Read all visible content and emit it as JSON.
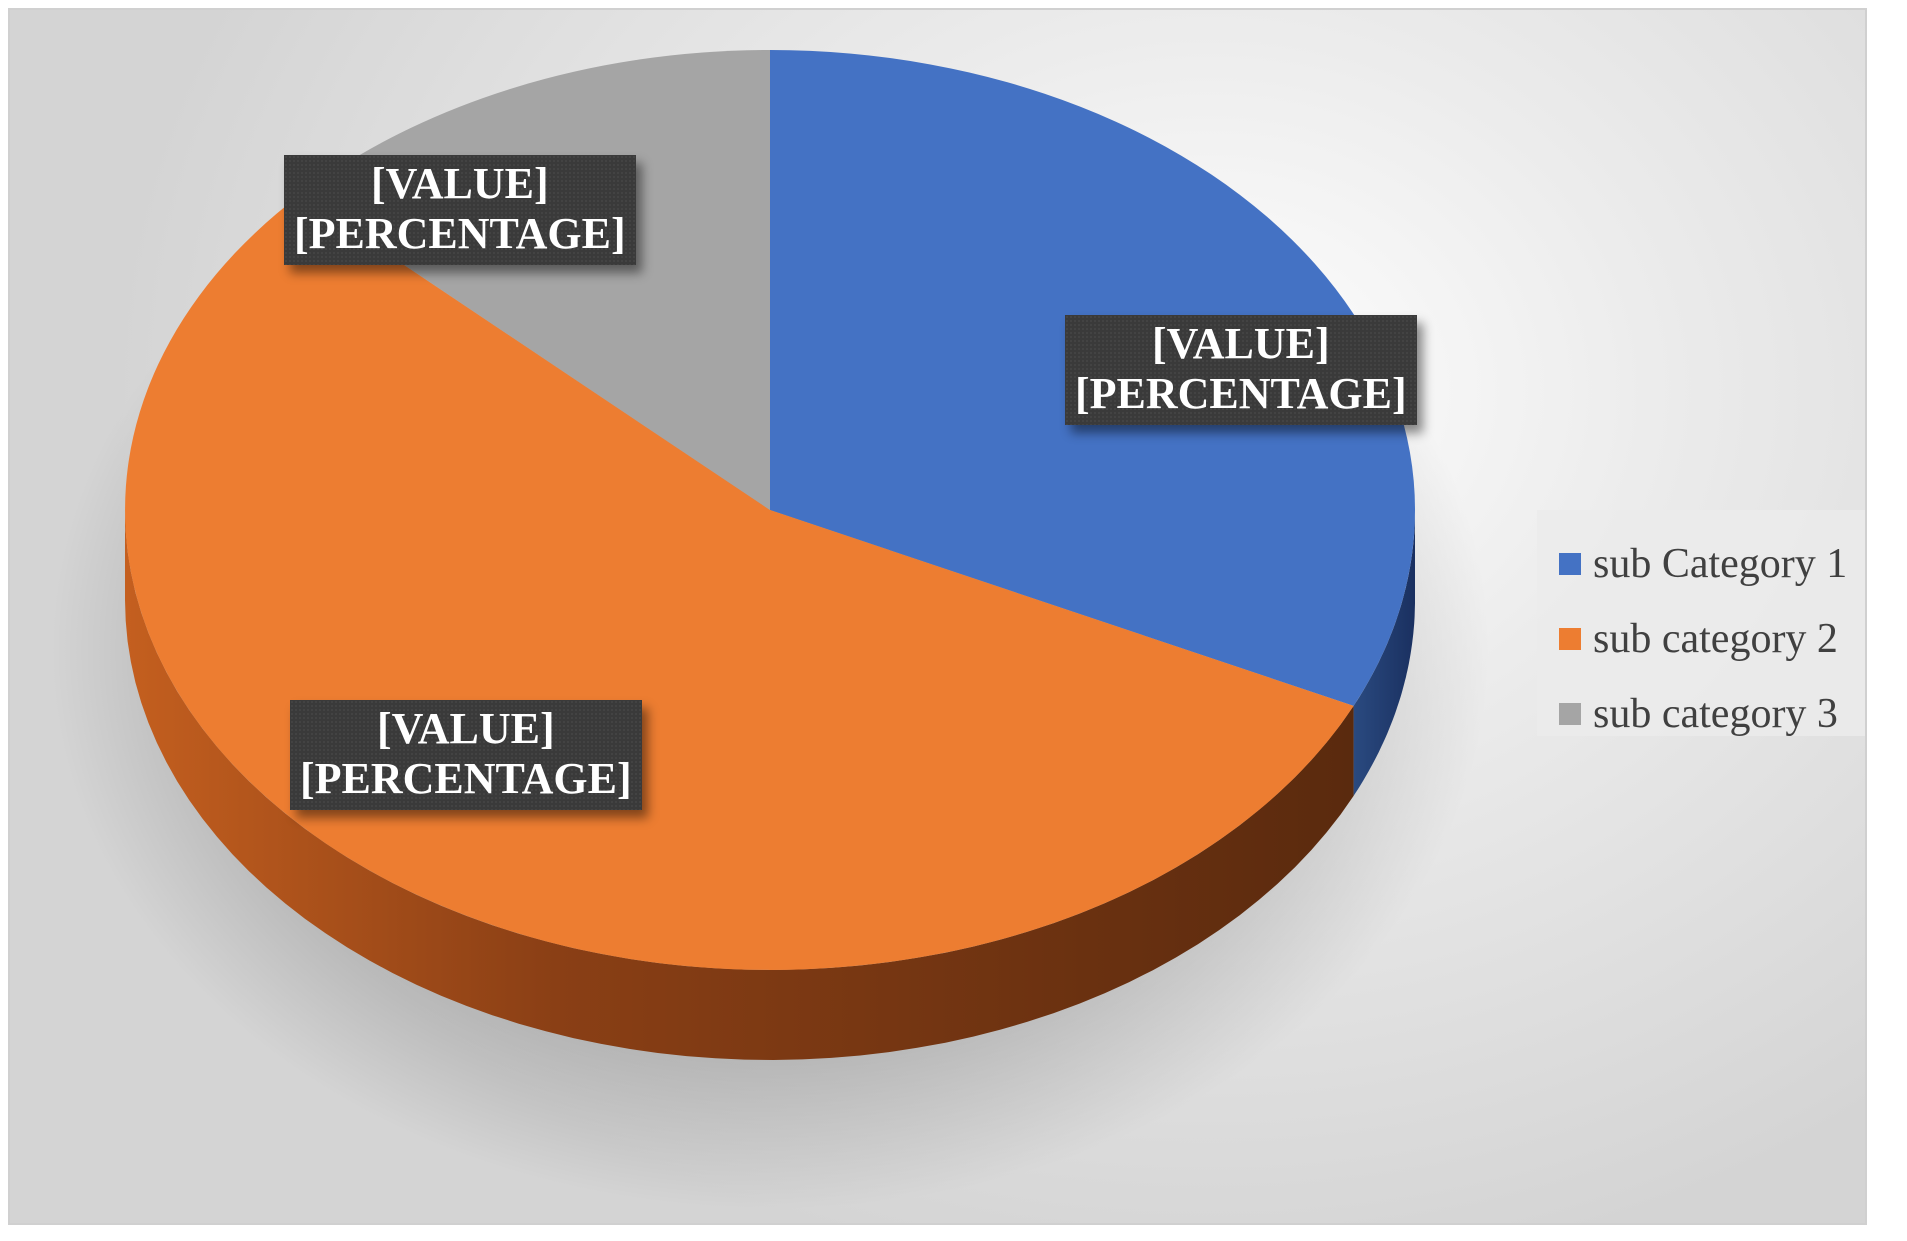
{
  "chart_data": {
    "type": "pie",
    "style": "3d",
    "categories": [
      "sub Category 1",
      "sub category 2",
      "sub category 3"
    ],
    "values": [
      32,
      55,
      13
    ],
    "colors": [
      "#4472C4",
      "#ED7D31",
      "#A5A5A5"
    ],
    "data_labels": [
      {
        "line1": "[VALUE]",
        "line2": "[PERCENTAGE]"
      },
      {
        "line1": "[VALUE]",
        "line2": "[PERCENTAGE]"
      },
      {
        "line1": "[VALUE]",
        "line2": "[PERCENTAGE]"
      }
    ],
    "legend_position": "right",
    "title": ""
  }
}
